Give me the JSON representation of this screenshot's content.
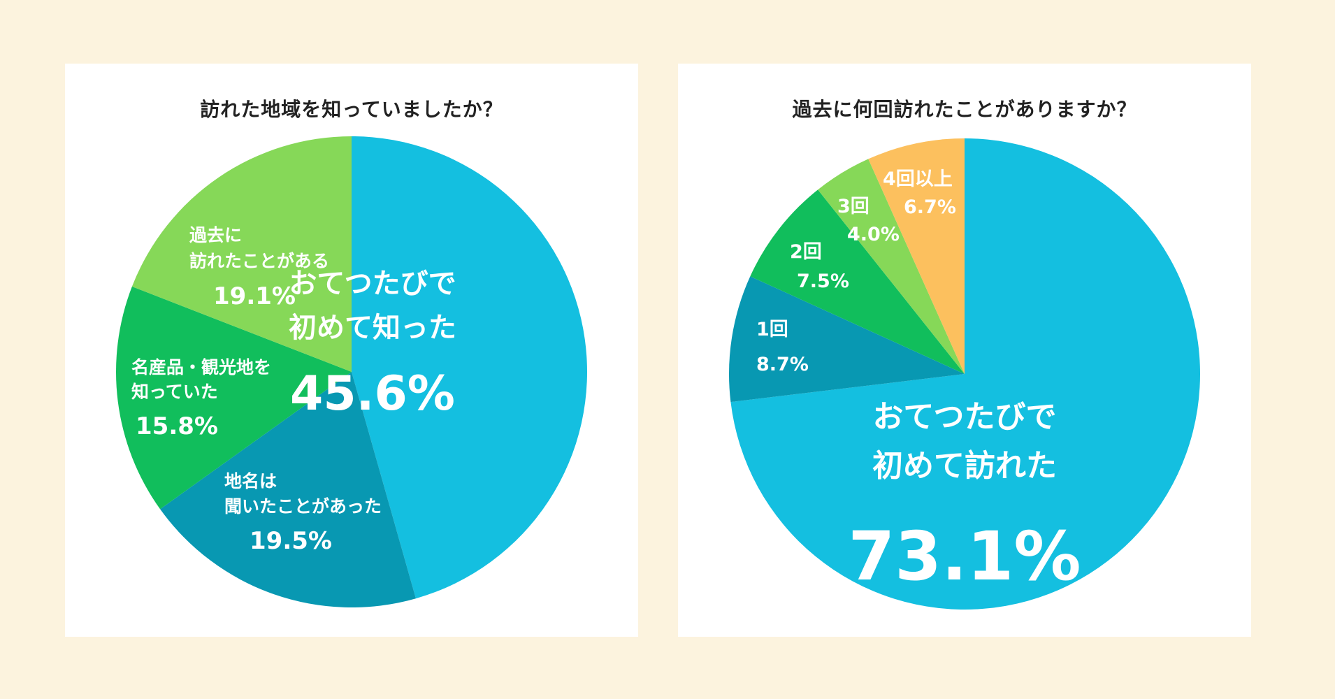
{
  "chart_data": [
    {
      "type": "pie",
      "title": "訪れた地域を知っていましたか？",
      "start": "12 o'clock, clockwise",
      "slices": [
        {
          "name": "おてつたびで初めて知った",
          "label_lines": [
            "おてつたびで",
            "初めて知った"
          ],
          "value": 45.6,
          "value_text": "45.6%",
          "color": "#14bfe0"
        },
        {
          "name": "地名は聞いたことがあった",
          "label_lines": [
            "地名は",
            "聞いたことがあった"
          ],
          "value": 19.5,
          "value_text": "19.5%",
          "color": "#0898b2"
        },
        {
          "name": "名産品・観光地を知っていた",
          "label_lines": [
            "名産品・観光地を",
            "知っていた"
          ],
          "value": 15.8,
          "value_text": "15.8%",
          "color": "#11be5c"
        },
        {
          "name": "過去に訪れたことがある",
          "label_lines": [
            "過去に",
            "訪れたことがある"
          ],
          "value": 19.1,
          "value_text": "19.1%",
          "color": "#86d858"
        }
      ]
    },
    {
      "type": "pie",
      "title": "過去に何回訪れたことがありますか？",
      "start": "12 o'clock, clockwise",
      "slices": [
        {
          "name": "おてつたびで初めて訪れた",
          "label_lines": [
            "おてつたびで",
            "初めて訪れた"
          ],
          "value": 73.1,
          "value_text": "73.1%",
          "color": "#14bfe0"
        },
        {
          "name": "1回",
          "label_lines": [
            "1回"
          ],
          "value": 8.7,
          "value_text": "8.7%",
          "color": "#0898b2"
        },
        {
          "name": "2回",
          "label_lines": [
            "2回"
          ],
          "value": 7.5,
          "value_text": "7.5%",
          "color": "#11be5c"
        },
        {
          "name": "3回",
          "label_lines": [
            "3回"
          ],
          "value": 4.0,
          "value_text": "4.0%",
          "color": "#86d858"
        },
        {
          "name": "4回以上",
          "label_lines": [
            "4回以上"
          ],
          "value": 6.7,
          "value_text": "6.7%",
          "color": "#fcc05e"
        }
      ]
    }
  ]
}
